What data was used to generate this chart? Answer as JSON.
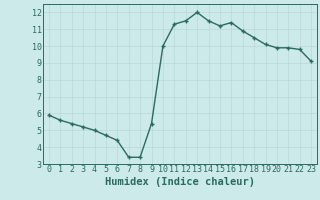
{
  "x": [
    0,
    1,
    2,
    3,
    4,
    5,
    6,
    7,
    8,
    9,
    10,
    11,
    12,
    13,
    14,
    15,
    16,
    17,
    18,
    19,
    20,
    21,
    22,
    23
  ],
  "y": [
    5.9,
    5.6,
    5.4,
    5.2,
    5.0,
    4.7,
    4.4,
    3.4,
    3.4,
    5.4,
    10.0,
    11.3,
    11.5,
    12.0,
    11.5,
    11.2,
    11.4,
    10.9,
    10.5,
    10.1,
    9.9,
    9.9,
    9.8,
    9.1
  ],
  "line_color": "#2a6b5e",
  "bg_color": "#cceaea",
  "grid_color": "#b8d8d8",
  "xlabel": "Humidex (Indice chaleur)",
  "ylim": [
    3,
    12.5
  ],
  "xlim": [
    -0.5,
    23.5
  ],
  "yticks": [
    3,
    4,
    5,
    6,
    7,
    8,
    9,
    10,
    11,
    12
  ],
  "xticks": [
    0,
    1,
    2,
    3,
    4,
    5,
    6,
    7,
    8,
    9,
    10,
    11,
    12,
    13,
    14,
    15,
    16,
    17,
    18,
    19,
    20,
    21,
    22,
    23
  ],
  "marker": "+",
  "marker_size": 3.5,
  "line_width": 1.0,
  "xlabel_fontsize": 7.5,
  "tick_fontsize": 6.0
}
